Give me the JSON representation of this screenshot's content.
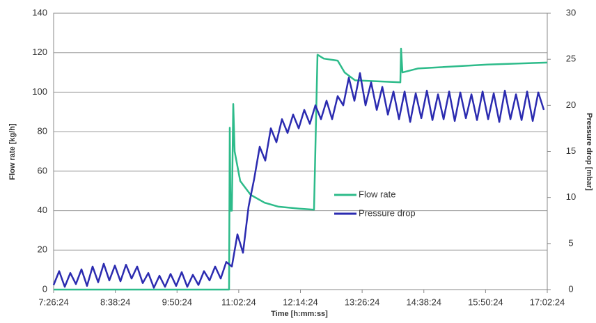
{
  "chart_data": {
    "type": "line",
    "xlabel": "Time [h:mm:ss]",
    "ylabel": "Flow rate [kg/h]",
    "y2label": "Pressure drop [mbar]",
    "xlim": [
      26784,
      61344
    ],
    "xticks": [
      {
        "value": 26784,
        "label": "7:26:24"
      },
      {
        "value": 31104,
        "label": "8:38:24"
      },
      {
        "value": 35424,
        "label": "9:50:24"
      },
      {
        "value": 39744,
        "label": "11:02:24"
      },
      {
        "value": 44064,
        "label": "12:14:24"
      },
      {
        "value": 48384,
        "label": "13:26:24"
      },
      {
        "value": 52704,
        "label": "14:38:24"
      },
      {
        "value": 57024,
        "label": "15:50:24"
      },
      {
        "value": 61344,
        "label": "17:02:24"
      }
    ],
    "ylim": [
      0,
      140
    ],
    "yticks": [
      0,
      20,
      40,
      60,
      80,
      100,
      120,
      140
    ],
    "y2lim": [
      0,
      30
    ],
    "y2ticks": [
      0,
      5,
      10,
      15,
      20,
      25,
      30
    ],
    "grid": true,
    "legend": "center",
    "series": [
      {
        "name": "Flow rate",
        "color": "#2dbb8a",
        "x": [
          26784,
          39068,
          39117,
          39165,
          39263,
          39360,
          39458,
          39848,
          40579,
          41554,
          42529,
          43991,
          45015,
          45258,
          45697,
          46672,
          47159,
          47891,
          51059,
          51108,
          51205,
          52278,
          57152,
          61344
        ],
        "values": [
          0,
          0,
          82,
          40,
          40,
          94,
          70,
          55,
          48,
          44,
          42,
          41,
          40.5,
          119,
          117,
          116,
          110,
          106,
          105,
          122,
          110,
          112,
          114,
          115
        ]
      },
      {
        "name": "Pressure drop",
        "color": "#2b2bb0",
        "axis": "y2",
        "x": [
          26784,
          27174,
          27564,
          27954,
          28344,
          28734,
          29124,
          29514,
          29904,
          30294,
          30684,
          31074,
          31464,
          31854,
          32244,
          32634,
          33024,
          33414,
          33804,
          34194,
          34584,
          34974,
          35364,
          35754,
          36144,
          36534,
          36924,
          37314,
          37704,
          38094,
          38484,
          38874,
          39264,
          39654,
          40044,
          40434,
          40824,
          41214,
          41604,
          41994,
          42384,
          42774,
          43164,
          43554,
          43944,
          44334,
          44724,
          45114,
          45504,
          45894,
          46284,
          46674,
          47064,
          47454,
          47844,
          48234,
          48624,
          49014,
          49404,
          49794,
          50184,
          50574,
          50964,
          51354,
          51744,
          52134,
          52524,
          52914,
          53304,
          53694,
          54084,
          54474,
          54864,
          55254,
          55644,
          56034,
          56424,
          56814,
          57204,
          57594,
          57984,
          58374,
          58764,
          59154,
          59544,
          59934,
          60324,
          60714,
          61104
        ],
        "values": [
          0.5,
          2,
          0.3,
          1.8,
          0.6,
          2.2,
          0.4,
          2.5,
          0.8,
          2.8,
          1,
          2.6,
          0.9,
          2.7,
          1.2,
          2.5,
          0.7,
          1.8,
          0.2,
          1.5,
          0.3,
          1.7,
          0.4,
          1.9,
          0.3,
          1.6,
          0.5,
          2,
          1,
          2.5,
          1.2,
          3,
          2.5,
          6,
          4,
          9,
          12,
          15.5,
          14,
          17.5,
          16,
          18.5,
          17,
          19,
          17.5,
          19.5,
          18,
          20,
          18.5,
          20.5,
          18.5,
          21,
          20,
          23,
          20.5,
          23.5,
          20,
          22.5,
          19.5,
          22,
          19,
          21.5,
          18.5,
          21.5,
          18.2,
          21.3,
          18.6,
          21.6,
          18.4,
          21.2,
          18.5,
          21.5,
          18.3,
          21.4,
          18.6,
          21.2,
          18.4,
          21.5,
          18.5,
          21.3,
          18.2,
          21.6,
          18.5,
          21.2,
          18.4,
          21.5,
          18.3,
          21.4,
          19.5
        ]
      }
    ]
  }
}
